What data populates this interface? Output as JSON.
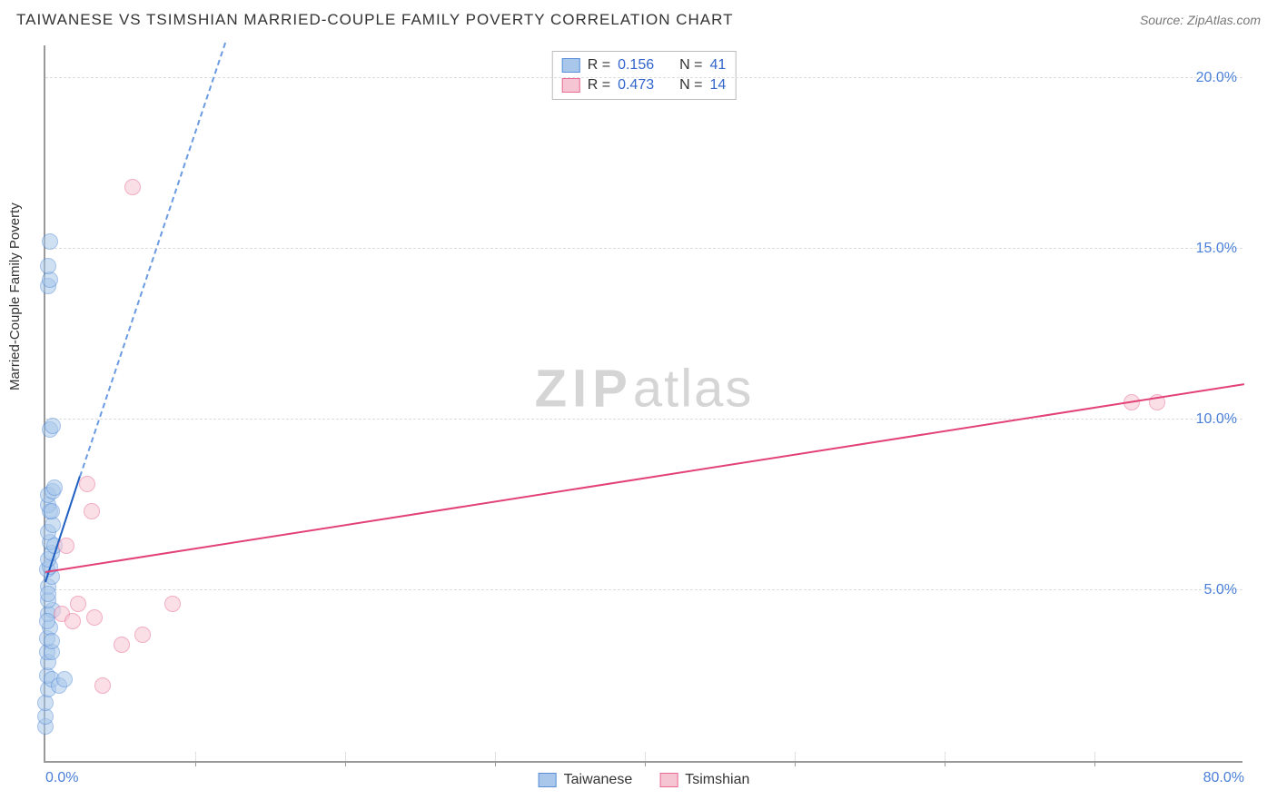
{
  "header": {
    "title": "TAIWANESE VS TSIMSHIAN MARRIED-COUPLE FAMILY POVERTY CORRELATION CHART",
    "source": "Source: ZipAtlas.com"
  },
  "chart": {
    "type": "scatter",
    "ylabel": "Married-Couple Family Poverty",
    "xlim": [
      0,
      80
    ],
    "ylim": [
      0,
      21
    ],
    "xtick_labels": [
      "0.0%",
      "80.0%"
    ],
    "xtick_positions": [
      0,
      80
    ],
    "xtick_minor_positions": [
      10,
      20,
      30,
      40,
      50,
      60,
      70
    ],
    "ytick_labels": [
      "5.0%",
      "10.0%",
      "15.0%",
      "20.0%"
    ],
    "ytick_positions": [
      5,
      10,
      15,
      20
    ],
    "background_color": "#ffffff",
    "grid_color": "#dddddd",
    "axis_color": "#999999",
    "tick_label_color": "#4a7fd8",
    "marker_radius": 9,
    "marker_opacity": 0.55,
    "watermark": {
      "left": "ZIP",
      "right": "atlas"
    },
    "series": [
      {
        "name": "Taiwanese",
        "color_fill": "#a8c7ea",
        "color_stroke": "#5a8fd8",
        "trend_solid_color": "#1f5fc2",
        "trend_dash_color": "#6a9ae0",
        "trend_solid": {
          "x1": 0.0,
          "y1": 5.2,
          "x2": 2.3,
          "y2": 8.3
        },
        "trend_dash": {
          "x1": 2.3,
          "y1": 8.3,
          "x2": 12.0,
          "y2": 21.0
        },
        "points": [
          [
            0.0,
            1.0
          ],
          [
            0.0,
            1.3
          ],
          [
            0.0,
            1.7
          ],
          [
            0.2,
            2.1
          ],
          [
            0.1,
            2.5
          ],
          [
            0.4,
            2.4
          ],
          [
            0.2,
            2.9
          ],
          [
            0.1,
            3.2
          ],
          [
            0.4,
            3.2
          ],
          [
            0.1,
            3.6
          ],
          [
            0.3,
            3.9
          ],
          [
            0.2,
            4.3
          ],
          [
            0.5,
            4.4
          ],
          [
            0.2,
            4.7
          ],
          [
            0.9,
            2.2
          ],
          [
            1.3,
            2.4
          ],
          [
            0.2,
            5.1
          ],
          [
            0.4,
            5.4
          ],
          [
            0.1,
            5.6
          ],
          [
            0.3,
            5.7
          ],
          [
            0.2,
            5.9
          ],
          [
            0.4,
            6.1
          ],
          [
            0.3,
            6.4
          ],
          [
            0.2,
            6.7
          ],
          [
            0.5,
            6.9
          ],
          [
            0.3,
            7.3
          ],
          [
            0.2,
            7.5
          ],
          [
            0.4,
            7.3
          ],
          [
            0.2,
            7.8
          ],
          [
            0.5,
            7.9
          ],
          [
            0.6,
            8.0
          ],
          [
            0.3,
            9.7
          ],
          [
            0.5,
            9.8
          ],
          [
            0.2,
            13.9
          ],
          [
            0.3,
            14.1
          ],
          [
            0.2,
            14.5
          ],
          [
            0.3,
            15.2
          ],
          [
            0.2,
            4.9
          ],
          [
            0.1,
            4.1
          ],
          [
            0.6,
            6.3
          ],
          [
            0.4,
            3.5
          ]
        ]
      },
      {
        "name": "Tsimshian",
        "color_fill": "#f6c5d4",
        "color_stroke": "#e96b93",
        "trend_solid_color": "#e24278",
        "trend_solid": {
          "x1": 0.0,
          "y1": 5.5,
          "x2": 80.0,
          "y2": 11.0
        },
        "points": [
          [
            1.1,
            4.3
          ],
          [
            1.8,
            4.1
          ],
          [
            2.2,
            4.6
          ],
          [
            3.3,
            4.2
          ],
          [
            3.8,
            2.2
          ],
          [
            5.1,
            3.4
          ],
          [
            6.5,
            3.7
          ],
          [
            2.8,
            8.1
          ],
          [
            3.1,
            7.3
          ],
          [
            1.4,
            6.3
          ],
          [
            8.5,
            4.6
          ],
          [
            5.8,
            16.8
          ],
          [
            72.5,
            10.5
          ],
          [
            74.2,
            10.5
          ]
        ]
      }
    ],
    "legend_top": [
      {
        "swatch_fill": "#a8c7ea",
        "swatch_stroke": "#5a8fd8",
        "r_label": "R =",
        "r_val": "0.156",
        "n_label": "N =",
        "n_val": "41"
      },
      {
        "swatch_fill": "#f6c5d4",
        "swatch_stroke": "#e96b93",
        "r_label": "R =",
        "r_val": "0.473",
        "n_label": "N =",
        "n_val": "14"
      }
    ],
    "legend_bottom": [
      {
        "swatch_fill": "#a8c7ea",
        "swatch_stroke": "#5a8fd8",
        "label": "Taiwanese"
      },
      {
        "swatch_fill": "#f6c5d4",
        "swatch_stroke": "#e96b93",
        "label": "Tsimshian"
      }
    ]
  }
}
